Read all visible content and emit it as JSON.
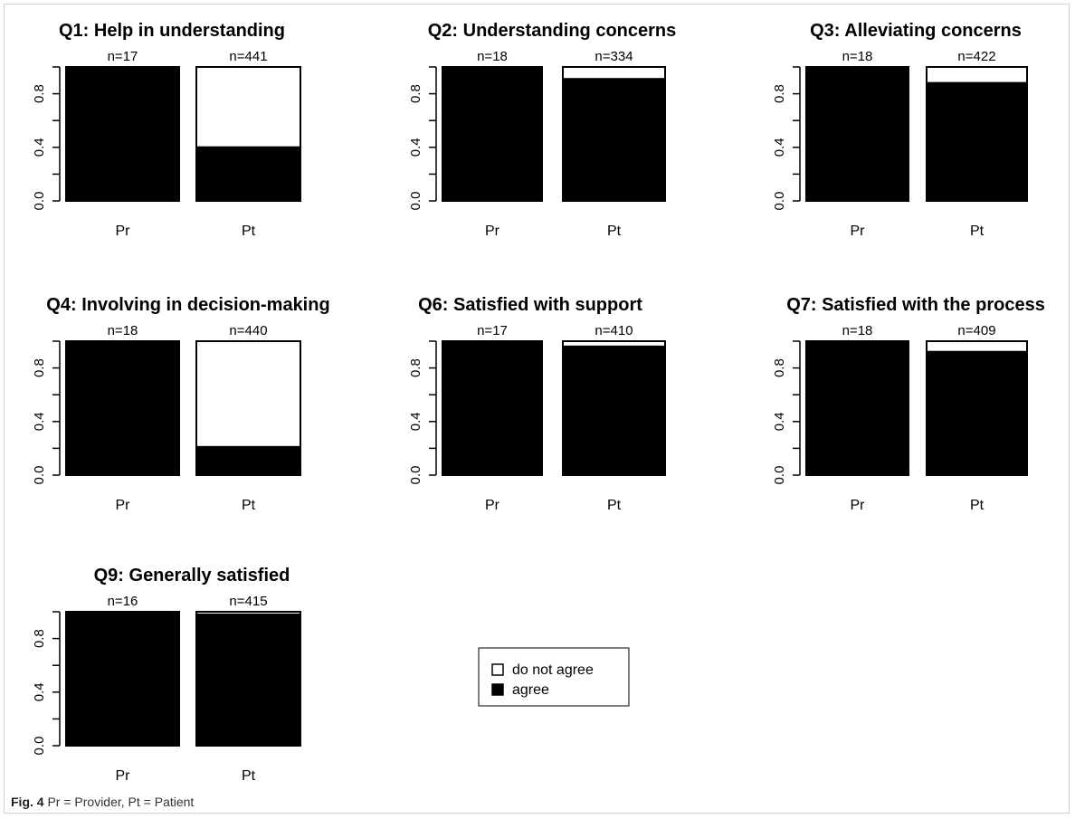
{
  "caption": {
    "label": "Fig. 4",
    "text": "Pr = Provider, Pt = Patient"
  },
  "colors": {
    "agree": "#000000",
    "do_not_agree": "#ffffff",
    "axis": "#000000"
  },
  "legend": {
    "position": "center",
    "entries": [
      {
        "label": "do not agree",
        "color": "#ffffff"
      },
      {
        "label": "agree",
        "color": "#000000"
      }
    ]
  },
  "chart_data": [
    {
      "type": "bar",
      "stacked": true,
      "title": "Q1: Help in understanding",
      "categories": [
        "Pr",
        "Pt"
      ],
      "n_labels": [
        "n=17",
        "n=441"
      ],
      "ylim": [
        0,
        1
      ],
      "yticks": [
        "0.0",
        "0.4",
        "0.8"
      ],
      "series": [
        {
          "name": "agree",
          "values": [
            1.0,
            0.4
          ]
        },
        {
          "name": "do not agree",
          "values": [
            0.0,
            0.6
          ]
        }
      ]
    },
    {
      "type": "bar",
      "stacked": true,
      "title": "Q2: Understanding concerns",
      "categories": [
        "Pr",
        "Pt"
      ],
      "n_labels": [
        "n=18",
        "n=334"
      ],
      "ylim": [
        0,
        1
      ],
      "yticks": [
        "0.0",
        "0.4",
        "0.8"
      ],
      "series": [
        {
          "name": "agree",
          "values": [
            1.0,
            0.91
          ]
        },
        {
          "name": "do not agree",
          "values": [
            0.0,
            0.09
          ]
        }
      ]
    },
    {
      "type": "bar",
      "stacked": true,
      "title": "Q3: Alleviating concerns",
      "categories": [
        "Pr",
        "Pt"
      ],
      "n_labels": [
        "n=18",
        "n=422"
      ],
      "ylim": [
        0,
        1
      ],
      "yticks": [
        "0.0",
        "0.4",
        "0.8"
      ],
      "series": [
        {
          "name": "agree",
          "values": [
            1.0,
            0.88
          ]
        },
        {
          "name": "do not agree",
          "values": [
            0.0,
            0.12
          ]
        }
      ]
    },
    {
      "type": "bar",
      "stacked": true,
      "title": "Q4: Involving in decision-making",
      "categories": [
        "Pr",
        "Pt"
      ],
      "n_labels": [
        "n=18",
        "n=440"
      ],
      "ylim": [
        0,
        1
      ],
      "yticks": [
        "0.0",
        "0.4",
        "0.8"
      ],
      "series": [
        {
          "name": "agree",
          "values": [
            1.0,
            0.21
          ]
        },
        {
          "name": "do not agree",
          "values": [
            0.0,
            0.79
          ]
        }
      ]
    },
    {
      "type": "bar",
      "stacked": true,
      "title": "Q6: Satisfied with support",
      "categories": [
        "Pr",
        "Pt"
      ],
      "n_labels": [
        "n=17",
        "n=410"
      ],
      "ylim": [
        0,
        1
      ],
      "yticks": [
        "0.0",
        "0.4",
        "0.8"
      ],
      "series": [
        {
          "name": "agree",
          "values": [
            1.0,
            0.96
          ]
        },
        {
          "name": "do not agree",
          "values": [
            0.0,
            0.04
          ]
        }
      ]
    },
    {
      "type": "bar",
      "stacked": true,
      "title": "Q7: Satisfied with the process",
      "categories": [
        "Pr",
        "Pt"
      ],
      "n_labels": [
        "n=18",
        "n=409"
      ],
      "ylim": [
        0,
        1
      ],
      "yticks": [
        "0.0",
        "0.4",
        "0.8"
      ],
      "series": [
        {
          "name": "agree",
          "values": [
            1.0,
            0.92
          ]
        },
        {
          "name": "do not agree",
          "values": [
            0.0,
            0.08
          ]
        }
      ]
    },
    {
      "type": "bar",
      "stacked": true,
      "title": "Q9: Generally satisfied",
      "categories": [
        "Pr",
        "Pt"
      ],
      "n_labels": [
        "n=16",
        "n=415"
      ],
      "ylim": [
        0,
        1
      ],
      "yticks": [
        "0.0",
        "0.4",
        "0.8"
      ],
      "series": [
        {
          "name": "agree",
          "values": [
            1.0,
            0.98
          ]
        },
        {
          "name": "do not agree",
          "values": [
            0.0,
            0.02
          ]
        }
      ]
    }
  ]
}
